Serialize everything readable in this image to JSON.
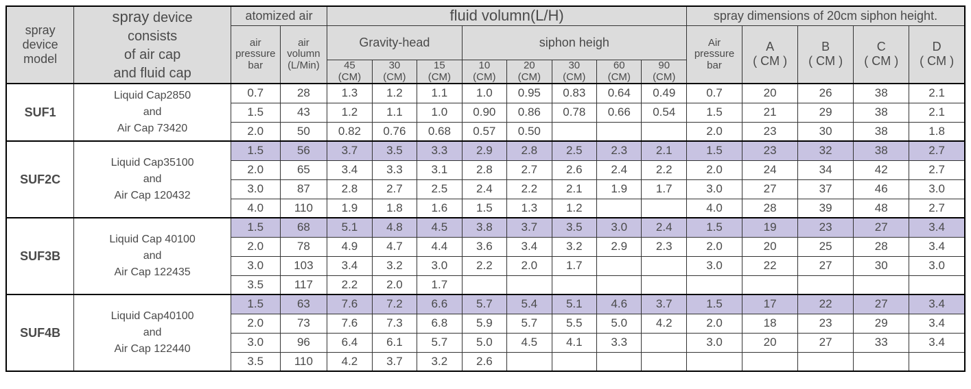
{
  "headers": {
    "model": "spray\ndevice\nmodel",
    "consists": "spray device\nconsists\nof air cap\nand fluid cap",
    "atomized_air": "atomized air",
    "air_pressure_bar": "air\npressure\nbar",
    "air_volumn": "air\nvolumn\n(L/Min)",
    "fluid_volumn": "fluid volumn(L/H)",
    "gravity_head": "Gravity-head",
    "siphon_heigh": "siphon heigh",
    "g45": "45\n(CM)",
    "g30": "30\n(CM)",
    "g15": "15\n(CM)",
    "s10": "10\n(CM)",
    "s20": "20\n(CM)",
    "s30": "30\n(CM)",
    "s60": "60\n(CM)",
    "s90": "90\n(CM)",
    "spray_dim": "spray dimensions of 20cm siphon height.",
    "air_pressure_bar2": "Air\npressure\nbar",
    "A": "A\n( CM )",
    "B": "B\n( CM )",
    "C": "C\n( CM )",
    "D": "D\n( CM )"
  },
  "highlight_color": "#c8c3e2",
  "header_bg": "#dcdcdc",
  "groups": [
    {
      "model": "SUF1",
      "desc": "Liquid Cap2850\nand\nAir Cap  73420",
      "rows": [
        {
          "hl": false,
          "ap": "0.7",
          "av": "28",
          "g": [
            "1.3",
            "1.2",
            "1.1"
          ],
          "s": [
            "1.0",
            "0.95",
            "0.83",
            "0.64",
            "0.49"
          ],
          "ap2": "0.7",
          "dim": [
            "20",
            "26",
            "38",
            "2.1"
          ]
        },
        {
          "hl": false,
          "ap": "1.5",
          "av": "43",
          "g": [
            "1.2",
            "1.1",
            "1.0"
          ],
          "s": [
            "0.90",
            "0.86",
            "0.78",
            "0.66",
            "0.54"
          ],
          "ap2": "1.5",
          "dim": [
            "21",
            "29",
            "38",
            "2.1"
          ]
        },
        {
          "hl": false,
          "ap": "2.0",
          "av": "50",
          "g": [
            "0.82",
            "0.76",
            "0.68"
          ],
          "s": [
            "0.57",
            "0.50",
            "",
            "",
            ""
          ],
          "ap2": "2.0",
          "dim": [
            "23",
            "30",
            "38",
            "1.8"
          ]
        }
      ]
    },
    {
      "model": "SUF2C",
      "desc": "Liquid Cap35100\nand\nAir Cap  120432",
      "rows": [
        {
          "hl": true,
          "ap": "1.5",
          "av": "56",
          "g": [
            "3.7",
            "3.5",
            "3.3"
          ],
          "s": [
            "2.9",
            "2.8",
            "2.5",
            "2.3",
            "2.1"
          ],
          "ap2": "1.5",
          "dim": [
            "23",
            "32",
            "38",
            "2.7"
          ]
        },
        {
          "hl": false,
          "ap": "2.0",
          "av": "65",
          "g": [
            "3.4",
            "3.3",
            "3.1"
          ],
          "s": [
            "2.8",
            "2.7",
            "2.6",
            "2.4",
            "2.2"
          ],
          "ap2": "2.0",
          "dim": [
            "24",
            "34",
            "42",
            "2.7"
          ]
        },
        {
          "hl": false,
          "ap": "3.0",
          "av": "87",
          "g": [
            "2.8",
            "2.7",
            "2.5"
          ],
          "s": [
            "2.4",
            "2.2",
            "2.1",
            "1.9",
            "1.7"
          ],
          "ap2": "3.0",
          "dim": [
            "27",
            "37",
            "46",
            "3.0"
          ]
        },
        {
          "hl": false,
          "ap": "4.0",
          "av": "110",
          "g": [
            "1.9",
            "1.8",
            "1.6"
          ],
          "s": [
            "1.5",
            "1.3",
            "1.2",
            "",
            ""
          ],
          "ap2": "4.0",
          "dim": [
            "28",
            "39",
            "48",
            "2.7"
          ]
        }
      ]
    },
    {
      "model": "SUF3B",
      "desc": "Liquid Cap 40100\nand\nAir Cap  122435",
      "rows": [
        {
          "hl": true,
          "ap": "1.5",
          "av": "68",
          "g": [
            "5.1",
            "4.8",
            "4.5"
          ],
          "s": [
            "3.8",
            "3.7",
            "3.5",
            "3.0",
            "2.4"
          ],
          "ap2": "1.5",
          "dim": [
            "19",
            "23",
            "27",
            "3.4"
          ]
        },
        {
          "hl": false,
          "ap": "2.0",
          "av": "78",
          "g": [
            "4.9",
            "4.7",
            "4.4"
          ],
          "s": [
            "3.6",
            "3.4",
            "3.2",
            "2.9",
            "2.3"
          ],
          "ap2": "2.0",
          "dim": [
            "20",
            "25",
            "28",
            "3.4"
          ]
        },
        {
          "hl": false,
          "ap": "3.0",
          "av": "103",
          "g": [
            "3.4",
            "3.2",
            "3.0"
          ],
          "s": [
            "2.2",
            "2.0",
            "1.7",
            "",
            ""
          ],
          "ap2": "3.0",
          "dim": [
            "22",
            "27",
            "30",
            "3.0"
          ]
        },
        {
          "hl": false,
          "ap": "3.5",
          "av": "117",
          "g": [
            "2.2",
            "2.0",
            "1.7"
          ],
          "s": [
            "",
            "",
            "",
            "",
            ""
          ],
          "ap2": "",
          "dim": [
            "",
            "",
            "",
            ""
          ]
        }
      ]
    },
    {
      "model": "SUF4B",
      "desc": "Liquid Cap40100\nand\nAir Cap  122440",
      "rows": [
        {
          "hl": true,
          "ap": "1.5",
          "av": "63",
          "g": [
            "7.6",
            "7.2",
            "6.6"
          ],
          "s": [
            "5.7",
            "5.4",
            "5.1",
            "4.6",
            "3.7"
          ],
          "ap2": "1.5",
          "dim": [
            "17",
            "22",
            "27",
            "3.4"
          ]
        },
        {
          "hl": false,
          "ap": "2.0",
          "av": "73",
          "g": [
            "7.6",
            "7.3",
            "6.8"
          ],
          "s": [
            "5.9",
            "5.7",
            "5.5",
            "5.0",
            "4.2"
          ],
          "ap2": "2.0",
          "dim": [
            "18",
            "23",
            "29",
            "3.4"
          ]
        },
        {
          "hl": false,
          "ap": "3.0",
          "av": "96",
          "g": [
            "6.4",
            "6.1",
            "5.7"
          ],
          "s": [
            "5.0",
            "4.5",
            "4.1",
            "3.3",
            ""
          ],
          "ap2": "3.0",
          "dim": [
            "20",
            "27",
            "33",
            "3.4"
          ]
        },
        {
          "hl": false,
          "ap": "3.5",
          "av": "110",
          "g": [
            "4.2",
            "3.7",
            "3.2"
          ],
          "s": [
            "2.6",
            "",
            "",
            "",
            ""
          ],
          "ap2": "",
          "dim": [
            "",
            "",
            "",
            ""
          ]
        }
      ]
    }
  ]
}
